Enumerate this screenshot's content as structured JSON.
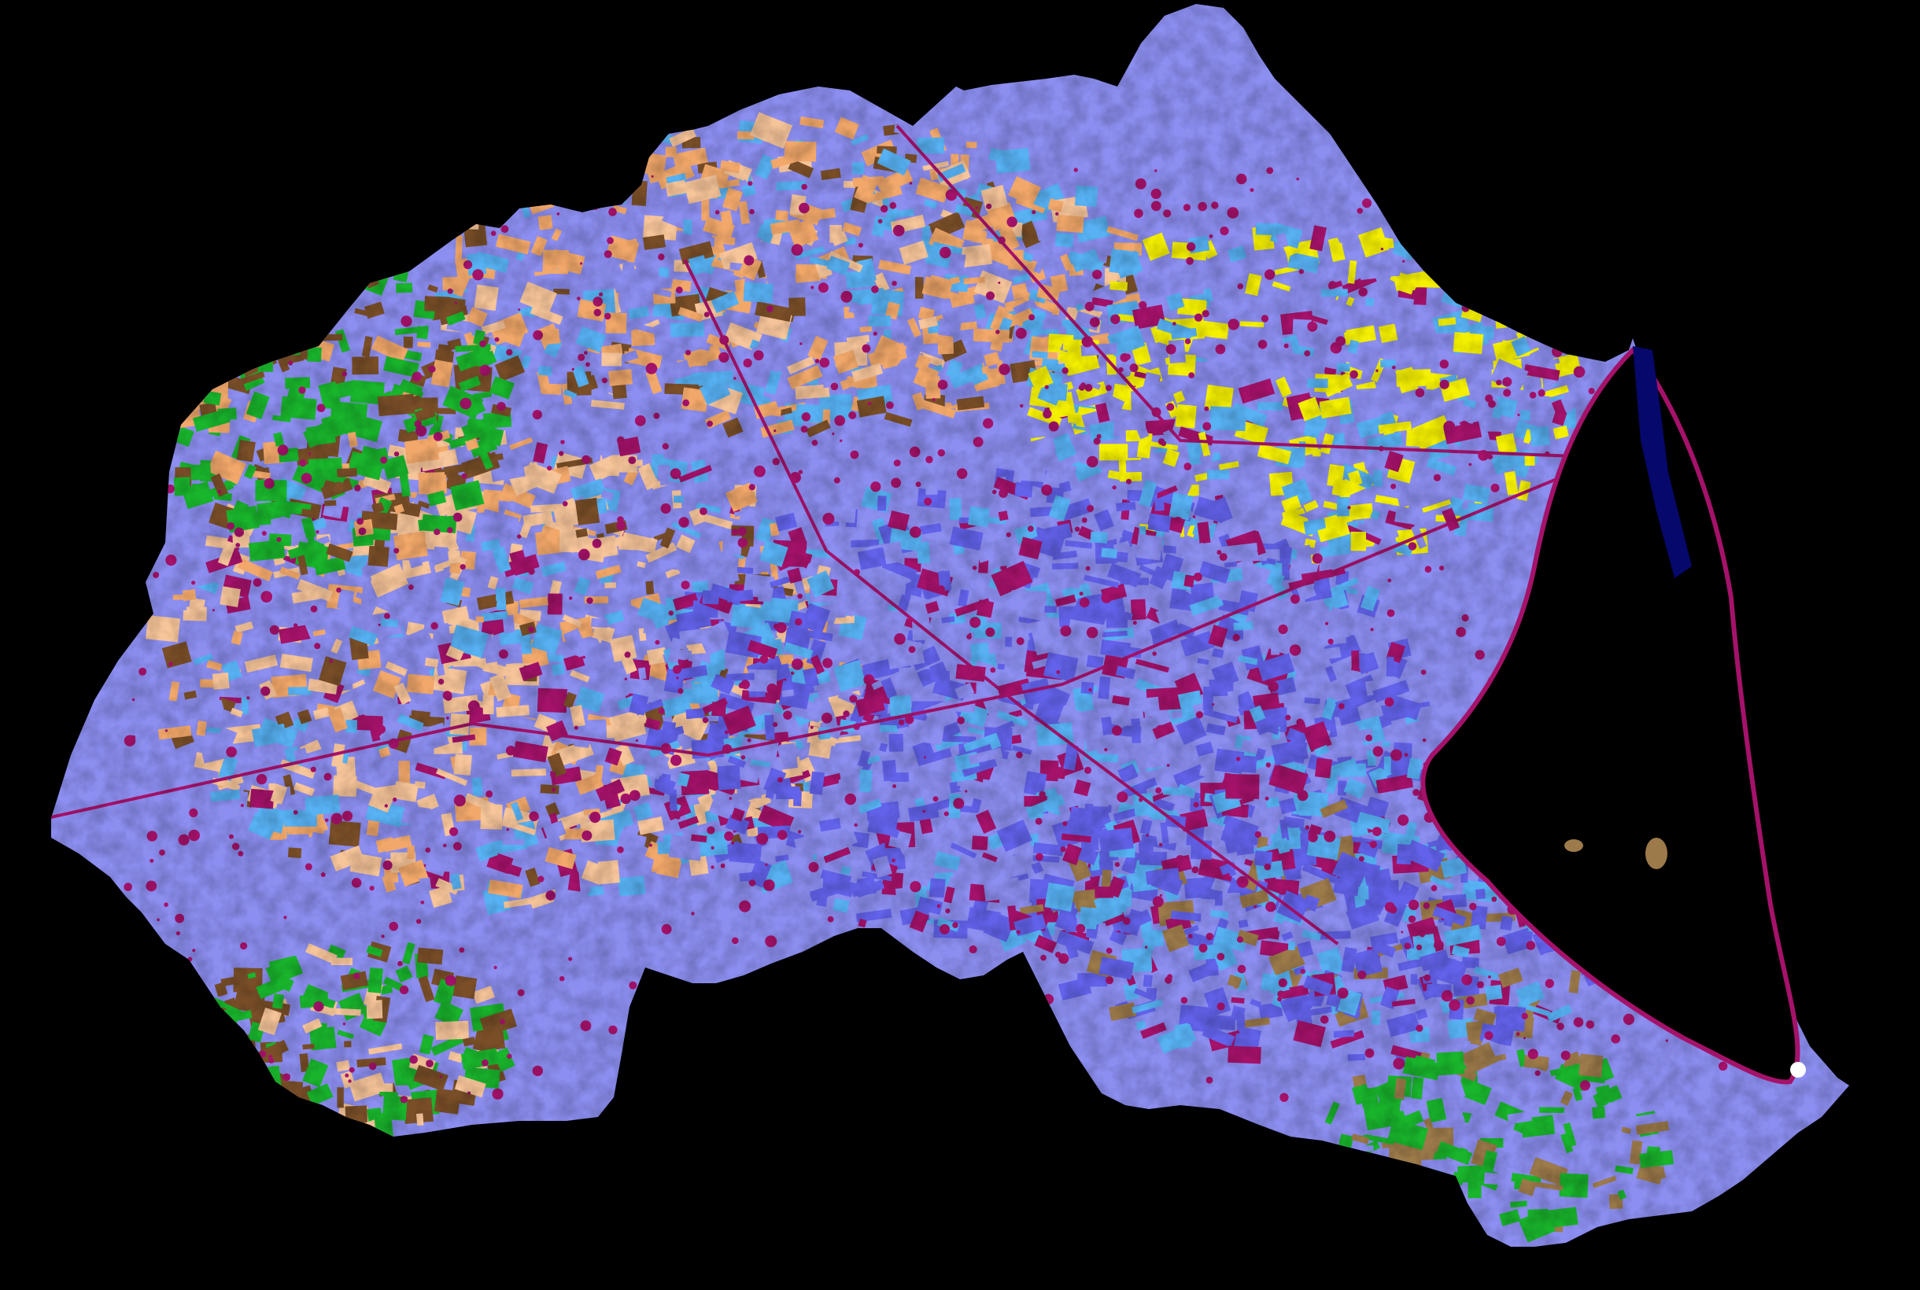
{
  "map": {
    "background_color": "#000000",
    "classes": [
      {
        "id": "forest",
        "color": "#19b52c"
      },
      {
        "id": "shrubland",
        "color": "#7a4f28"
      },
      {
        "id": "herbaceous",
        "color": "#f2a86a"
      },
      {
        "id": "rainfed-crops",
        "color": "#f7c59a"
      },
      {
        "id": "irrigated-herbaceous",
        "color": "#6262ea"
      },
      {
        "id": "irrigated-woody",
        "color": "#57b1f3"
      },
      {
        "id": "lavender-crops",
        "color": "#8c8ef0"
      },
      {
        "id": "urban",
        "color": "#a5126a"
      },
      {
        "id": "bare-soil",
        "color": "#9c7a4a"
      },
      {
        "id": "greenhouse",
        "color": "#f5f000"
      },
      {
        "id": "water",
        "color": "#07086b"
      },
      {
        "id": "saline",
        "color": "#ffffff"
      }
    ]
  }
}
